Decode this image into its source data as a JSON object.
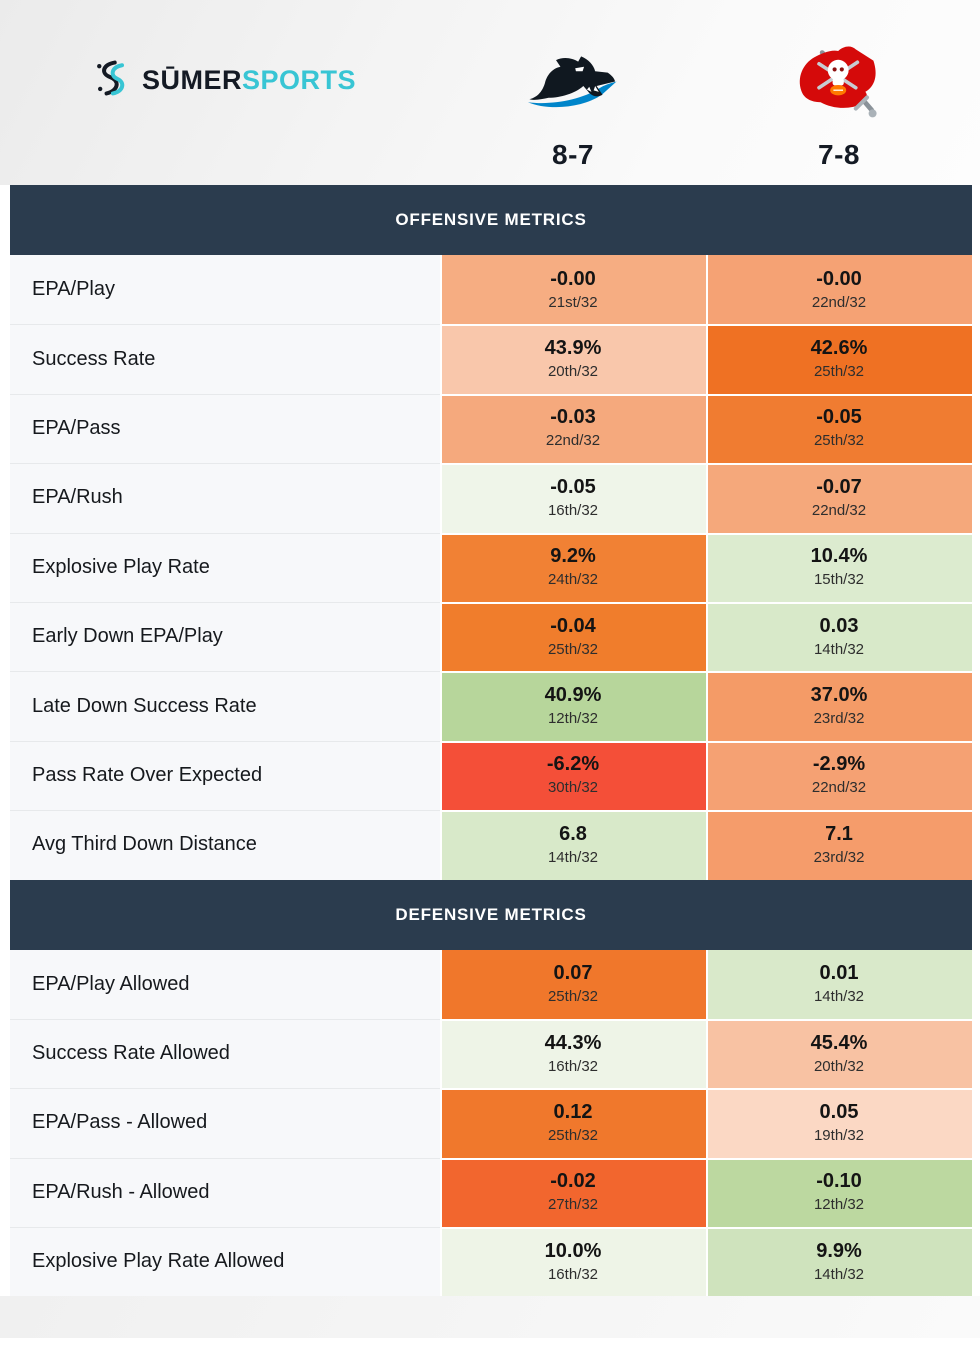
{
  "brand": {
    "wordmark_primary": "SŪMER",
    "wordmark_secondary": "SPORTS",
    "accent_color": "#38c5d4",
    "dark_color": "#141a24"
  },
  "header": {
    "teams": [
      {
        "name": "Carolina Panthers",
        "record": "8-7",
        "logo_icon": "panthers-logo"
      },
      {
        "name": "Tampa Bay Buccaneers",
        "record": "7-8",
        "logo_icon": "buccaneers-logo"
      }
    ]
  },
  "colors": {
    "section_header_bg": "#2b3c4e",
    "section_header_text": "#ffffff",
    "label_cell_bg": "#f7f8fa",
    "page_bg": "#ffffff"
  },
  "chart_data": {
    "type": "table",
    "teams": [
      "Carolina Panthers (8-7)",
      "Tampa Bay Buccaneers (7-8)"
    ],
    "rank_scale": "rank out of 32, green = good, orange/red = bad",
    "sections": [
      {
        "title": "OFFENSIVE METRICS",
        "rows": [
          {
            "label": "EPA/Play",
            "cells": [
              {
                "value": "-0.00",
                "rank": "21st/32",
                "bg": "#f6ad82"
              },
              {
                "value": "-0.00",
                "rank": "22nd/32",
                "bg": "#f5a274"
              }
            ]
          },
          {
            "label": "Success Rate",
            "cells": [
              {
                "value": "43.9%",
                "rank": "20th/32",
                "bg": "#f9c7ab"
              },
              {
                "value": "42.6%",
                "rank": "25th/32",
                "bg": "#ef7123"
              }
            ]
          },
          {
            "label": "EPA/Pass",
            "cells": [
              {
                "value": "-0.03",
                "rank": "22nd/32",
                "bg": "#f5a97d"
              },
              {
                "value": "-0.05",
                "rank": "25th/32",
                "bg": "#f07c31"
              }
            ]
          },
          {
            "label": "EPA/Rush",
            "cells": [
              {
                "value": "-0.05",
                "rank": "16th/32",
                "bg": "#eff5e9"
              },
              {
                "value": "-0.07",
                "rank": "22nd/32",
                "bg": "#f5a87b"
              }
            ]
          },
          {
            "label": "Explosive Play Rate",
            "cells": [
              {
                "value": "9.2%",
                "rank": "24th/32",
                "bg": "#f18134"
              },
              {
                "value": "10.4%",
                "rank": "15th/32",
                "bg": "#dcebcf"
              }
            ]
          },
          {
            "label": "Early Down EPA/Play",
            "cells": [
              {
                "value": "-0.04",
                "rank": "25th/32",
                "bg": "#f07d2c"
              },
              {
                "value": "0.03",
                "rank": "14th/32",
                "bg": "#d8e9c9"
              }
            ]
          },
          {
            "label": "Late Down Success Rate",
            "cells": [
              {
                "value": "40.9%",
                "rank": "12th/32",
                "bg": "#b7d69b"
              },
              {
                "value": "37.0%",
                "rank": "23rd/32",
                "bg": "#f49b67"
              }
            ]
          },
          {
            "label": "Pass Rate Over Expected",
            "cells": [
              {
                "value": "-6.2%",
                "rank": "30th/32",
                "bg": "#f44f38"
              },
              {
                "value": "-2.9%",
                "rank": "22nd/32",
                "bg": "#f5a173"
              }
            ]
          },
          {
            "label": "Avg Third Down Distance",
            "cells": [
              {
                "value": "6.8",
                "rank": "14th/32",
                "bg": "#d8e9c9"
              },
              {
                "value": "7.1",
                "rank": "23rd/32",
                "bg": "#f59c6b"
              }
            ]
          }
        ]
      },
      {
        "title": "DEFENSIVE METRICS",
        "rows": [
          {
            "label": "EPA/Play Allowed",
            "cells": [
              {
                "value": "0.07",
                "rank": "25th/32",
                "bg": "#f0772b"
              },
              {
                "value": "0.01",
                "rank": "14th/32",
                "bg": "#d9e9ca"
              }
            ]
          },
          {
            "label": "Success Rate Allowed",
            "cells": [
              {
                "value": "44.3%",
                "rank": "16th/32",
                "bg": "#eef4e7"
              },
              {
                "value": "45.4%",
                "rank": "20th/32",
                "bg": "#f8c2a3"
              }
            ]
          },
          {
            "label": "EPA/Pass - Allowed",
            "cells": [
              {
                "value": "0.12",
                "rank": "25th/32",
                "bg": "#f0782c"
              },
              {
                "value": "0.05",
                "rank": "19th/32",
                "bg": "#fbd8c4"
              }
            ]
          },
          {
            "label": "EPA/Rush - Allowed",
            "cells": [
              {
                "value": "-0.02",
                "rank": "27th/32",
                "bg": "#f2662e"
              },
              {
                "value": "-0.10",
                "rank": "12th/32",
                "bg": "#bcd8a0"
              }
            ]
          },
          {
            "label": "Explosive Play Rate Allowed",
            "cells": [
              {
                "value": "10.0%",
                "rank": "16th/32",
                "bg": "#eef4e7"
              },
              {
                "value": "9.9%",
                "rank": "14th/32",
                "bg": "#cfe3bd"
              }
            ]
          }
        ]
      }
    ]
  }
}
